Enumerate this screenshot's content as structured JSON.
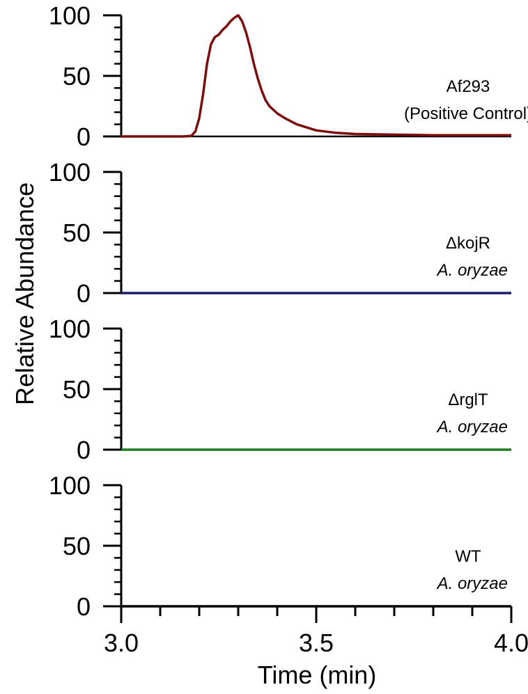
{
  "chart_data": {
    "type": "line",
    "ylabel": "Relative Abundance",
    "xlabel": "Time (min)",
    "xlim": [
      3.0,
      4.0
    ],
    "x_ticks": [
      "3.0",
      "3.5",
      "4.0"
    ],
    "y_ticks": [
      "0",
      "50",
      "100"
    ],
    "ylim": [
      0,
      100
    ],
    "panels": [
      {
        "label": "Af293",
        "sublabel": "(Positive Control)",
        "sublabel_italic": false,
        "color": "#7b0d0d",
        "x": [
          3.0,
          3.16,
          3.18,
          3.19,
          3.2,
          3.21,
          3.22,
          3.23,
          3.24,
          3.25,
          3.26,
          3.27,
          3.28,
          3.29,
          3.3,
          3.31,
          3.32,
          3.33,
          3.34,
          3.35,
          3.36,
          3.37,
          3.38,
          3.4,
          3.42,
          3.45,
          3.5,
          3.55,
          3.6,
          3.7,
          3.8,
          3.9,
          4.0
        ],
        "y": [
          0,
          0,
          0.5,
          4,
          15,
          35,
          60,
          76,
          82,
          84,
          88,
          91,
          95,
          98,
          100,
          95,
          86,
          74,
          60,
          48,
          38,
          30,
          25,
          19,
          15,
          10,
          5,
          3,
          2,
          1.5,
          1,
          1,
          1
        ]
      },
      {
        "label": "ΔkojR",
        "sublabel": "A. oryzae",
        "sublabel_italic": true,
        "color": "#1a1a6e",
        "x": [
          3.0,
          4.0
        ],
        "y": [
          0,
          0
        ]
      },
      {
        "label": "ΔrglT",
        "sublabel": "A. oryzae",
        "sublabel_italic": true,
        "color": "#1f7a1f",
        "x": [
          3.0,
          4.0
        ],
        "y": [
          0,
          0
        ]
      },
      {
        "label": "WT",
        "sublabel": "A. oryzae",
        "sublabel_italic": true,
        "color": "#000000",
        "x": [
          3.0,
          4.0
        ],
        "y": [
          0,
          0
        ]
      }
    ]
  }
}
